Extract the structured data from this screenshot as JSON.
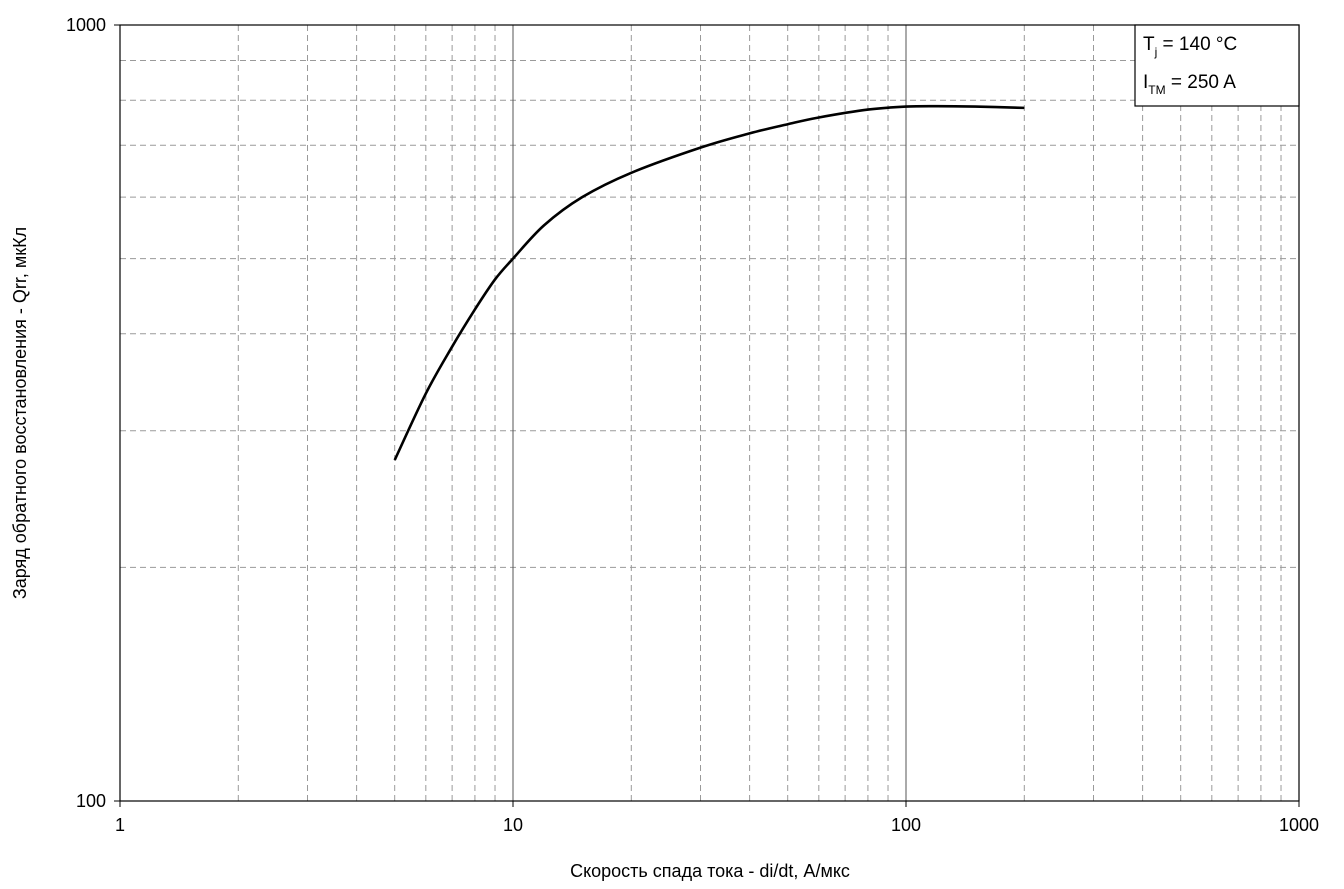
{
  "chart_data": {
    "type": "line",
    "xscale": "log",
    "yscale": "log",
    "xlim": [
      1,
      1000
    ],
    "ylim": [
      100,
      1000
    ],
    "xlabel": "Скорость спада тока - di/dt, А/мкс",
    "ylabel": "Заряд обратного восстановления - Qrr, мкКл",
    "x_ticks": [
      "1",
      "10",
      "100",
      "1000"
    ],
    "y_ticks": [
      "100",
      "1000"
    ],
    "grid": true,
    "legend": {
      "position": "top-right",
      "lines": [
        {
          "main": "T",
          "sub": "j",
          "rest": " = 140 °C"
        },
        {
          "main": "I",
          "sub": "TM",
          "rest": " = 250 A"
        }
      ]
    },
    "series": [
      {
        "color": "#000000",
        "x": [
          5,
          6,
          7,
          8,
          9,
          10,
          12,
          15,
          20,
          30,
          40,
          50,
          60,
          80,
          100,
          120,
          150,
          200
        ],
        "y": [
          275,
          335,
          385,
          430,
          470,
          500,
          552,
          600,
          645,
          695,
          725,
          745,
          760,
          778,
          785,
          786,
          785,
          782
        ]
      }
    ]
  }
}
